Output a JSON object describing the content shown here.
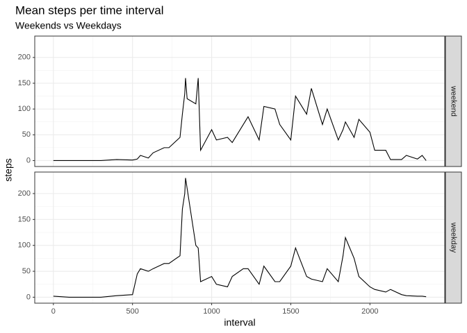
{
  "chart_data": {
    "type": "line",
    "facet": true,
    "title": "Mean steps per time interval",
    "subtitle": "Weekends vs Weekdays",
    "x_label": "interval",
    "y_label": "steps",
    "x": [
      0,
      100,
      200,
      300,
      400,
      500,
      530,
      550,
      600,
      630,
      700,
      730,
      800,
      815,
      830,
      835,
      845,
      900,
      915,
      930,
      1000,
      1030,
      1100,
      1130,
      1200,
      1230,
      1300,
      1330,
      1400,
      1430,
      1500,
      1530,
      1600,
      1630,
      1700,
      1730,
      1800,
      1830,
      1845,
      1900,
      1930,
      2000,
      2030,
      2100,
      2130,
      2200,
      2230,
      2300,
      2330,
      2355
    ],
    "series": [
      {
        "name": "weekend",
        "color": "#000000",
        "values": [
          0,
          0,
          0,
          0,
          2,
          1,
          3,
          10,
          5,
          15,
          25,
          25,
          45,
          90,
          130,
          160,
          120,
          110,
          160,
          20,
          60,
          40,
          45,
          35,
          70,
          85,
          40,
          105,
          100,
          70,
          40,
          125,
          90,
          140,
          70,
          100,
          40,
          60,
          75,
          45,
          80,
          55,
          20,
          20,
          2,
          2,
          10,
          3,
          10,
          0
        ]
      },
      {
        "name": "weekday",
        "color": "#000000",
        "values": [
          2,
          0,
          0,
          0,
          3,
          5,
          45,
          55,
          50,
          55,
          65,
          65,
          80,
          170,
          200,
          230,
          210,
          100,
          95,
          30,
          40,
          25,
          20,
          40,
          55,
          55,
          25,
          60,
          30,
          30,
          60,
          95,
          40,
          35,
          30,
          55,
          30,
          80,
          115,
          75,
          40,
          20,
          15,
          10,
          15,
          5,
          3,
          2,
          2,
          1
        ]
      }
    ],
    "xlim": [
      -117.75,
      2472.75
    ],
    "xticks": [
      0,
      500,
      1000,
      1500,
      2000
    ],
    "ylim": [
      -11.5,
      241.5
    ],
    "yticks": [
      0,
      50,
      100,
      150,
      200
    ],
    "grid": true
  }
}
